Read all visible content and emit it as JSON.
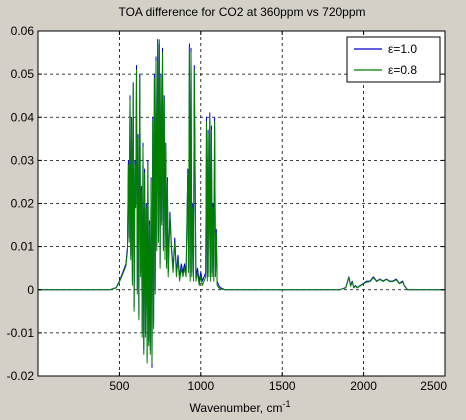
{
  "chart_data": {
    "type": "line",
    "title": "TOA difference for CO2 at 360ppm vs 720ppm",
    "xlabel": "Wavenumber, cm",
    "xlabel_superscript": "-1",
    "ylabel": "",
    "xlim": [
      0,
      2500
    ],
    "ylim": [
      -0.02,
      0.06
    ],
    "xticks": [
      500,
      1000,
      1500,
      2000,
      2500
    ],
    "xtick_labels": [
      "500",
      "1000",
      "1500",
      "2000",
      "2500"
    ],
    "yticks": [
      -0.02,
      -0.01,
      0,
      0.01,
      0.02,
      0.03,
      0.04,
      0.05,
      0.06
    ],
    "ytick_labels": [
      "-0.02",
      "-0.01",
      "0",
      "0.01",
      "0.02",
      "0.03",
      "0.04",
      "0.05",
      "0.06"
    ],
    "grid": true,
    "legend_position": "top-right",
    "series": [
      {
        "name": "ε=1.0",
        "color": "#0000cc",
        "x": [
          0,
          440,
          480,
          500,
          520,
          540,
          550,
          555,
          560,
          565,
          570,
          575,
          580,
          585,
          590,
          595,
          600,
          605,
          610,
          615,
          620,
          625,
          630,
          635,
          640,
          645,
          650,
          655,
          660,
          665,
          670,
          675,
          680,
          685,
          690,
          695,
          700,
          705,
          710,
          715,
          720,
          725,
          730,
          735,
          740,
          745,
          750,
          755,
          760,
          765,
          770,
          775,
          780,
          785,
          790,
          795,
          800,
          810,
          820,
          830,
          840,
          850,
          860,
          870,
          880,
          890,
          900,
          910,
          920,
          925,
          930,
          935,
          940,
          945,
          950,
          955,
          960,
          970,
          980,
          990,
          1000,
          1010,
          1020,
          1030,
          1035,
          1040,
          1045,
          1050,
          1055,
          1060,
          1065,
          1070,
          1075,
          1080,
          1085,
          1090,
          1095,
          1100,
          1110,
          1120,
          1150,
          1850,
          1890,
          1910,
          1920,
          1930,
          1940,
          1950,
          1960,
          1980,
          2000,
          2020,
          2040,
          2060,
          2080,
          2100,
          2120,
          2140,
          2160,
          2180,
          2200,
          2220,
          2240,
          2250,
          2260,
          2270,
          2400,
          2500
        ],
        "values": [
          0,
          0,
          0.0005,
          0.002,
          0.004,
          0.006,
          0.01,
          0.03,
          0.012,
          0.045,
          0.008,
          0.04,
          0.002,
          0.048,
          -0.004,
          0.03,
          0.02,
          0.052,
          0.0,
          0.036,
          -0.006,
          0.05,
          0.004,
          0.024,
          -0.01,
          0.034,
          -0.014,
          0.028,
          -0.01,
          0.02,
          -0.016,
          0.03,
          -0.012,
          0.016,
          -0.014,
          0.026,
          -0.018,
          0.04,
          -0.008,
          0.05,
          0.0,
          0.054,
          0.01,
          0.058,
          0.012,
          0.057,
          0.006,
          0.05,
          0.016,
          0.056,
          0.01,
          0.045,
          0.008,
          0.034,
          0.006,
          0.026,
          0.004,
          0.018,
          0.01,
          0.005,
          0.012,
          0.004,
          0.008,
          0.003,
          0.006,
          0.004,
          0.006,
          0.004,
          0.028,
          0.005,
          0.057,
          0.003,
          0.056,
          0.004,
          0.02,
          0.003,
          0.052,
          0.003,
          0.005,
          0.002,
          0.004,
          0.002,
          0.003,
          0.004,
          0.04,
          0.003,
          0.037,
          0.004,
          0.041,
          0.003,
          0.038,
          0.004,
          0.02,
          0.003,
          0.04,
          0.004,
          0.014,
          0.002,
          0.001,
          0.0005,
          0,
          0,
          0.0005,
          0.003,
          0.001,
          0.002,
          0.0005,
          0.001,
          0.0005,
          0.001,
          0.0015,
          0.002,
          0.002,
          0.003,
          0.002,
          0.0025,
          0.002,
          0.0025,
          0.002,
          0.002,
          0.0025,
          0.0015,
          0.002,
          0.001,
          0.0005,
          0,
          0,
          0
        ]
      },
      {
        "name": "ε=0.8",
        "color": "#008000",
        "x": [
          0,
          440,
          480,
          500,
          520,
          540,
          550,
          555,
          560,
          565,
          570,
          575,
          580,
          585,
          590,
          595,
          600,
          605,
          610,
          615,
          620,
          625,
          630,
          635,
          640,
          645,
          650,
          655,
          660,
          665,
          670,
          675,
          680,
          685,
          690,
          695,
          700,
          705,
          710,
          715,
          720,
          725,
          730,
          735,
          740,
          745,
          750,
          755,
          760,
          765,
          770,
          775,
          780,
          785,
          790,
          795,
          800,
          810,
          820,
          830,
          840,
          850,
          860,
          870,
          880,
          890,
          900,
          910,
          920,
          925,
          930,
          935,
          940,
          945,
          950,
          955,
          960,
          970,
          980,
          990,
          1000,
          1010,
          1020,
          1030,
          1035,
          1040,
          1045,
          1050,
          1055,
          1060,
          1065,
          1070,
          1075,
          1080,
          1085,
          1090,
          1095,
          1100,
          1110,
          1120,
          1150,
          1850,
          1890,
          1910,
          1920,
          1930,
          1940,
          1950,
          1960,
          1980,
          2000,
          2020,
          2040,
          2060,
          2080,
          2100,
          2120,
          2140,
          2160,
          2180,
          2200,
          2220,
          2240,
          2250,
          2260,
          2270,
          2400,
          2500
        ],
        "values": [
          0,
          0,
          0.0004,
          0.0018,
          0.0036,
          0.0055,
          0.009,
          0.029,
          0.011,
          0.044,
          0.007,
          0.039,
          0.001,
          0.047,
          -0.005,
          0.029,
          0.019,
          0.051,
          -0.001,
          0.035,
          -0.007,
          0.049,
          0.003,
          0.023,
          -0.011,
          0.033,
          -0.015,
          0.027,
          -0.011,
          0.019,
          -0.017,
          0.029,
          -0.013,
          0.015,
          -0.015,
          0.025,
          -0.017,
          0.039,
          -0.009,
          0.049,
          -0.001,
          0.053,
          0.009,
          0.057,
          0.011,
          0.058,
          0.005,
          0.049,
          0.015,
          0.055,
          0.009,
          0.044,
          0.007,
          0.033,
          0.005,
          0.025,
          0.003,
          0.017,
          0.009,
          0.004,
          0.011,
          0.003,
          0.007,
          0.002,
          0.005,
          0.003,
          0.005,
          0.003,
          0.027,
          0.004,
          0.056,
          0.002,
          0.055,
          0.003,
          0.019,
          0.002,
          0.051,
          0.002,
          0.004,
          0.001,
          0.003,
          0.001,
          0.002,
          0.003,
          0.039,
          0.002,
          0.036,
          0.003,
          0.04,
          0.002,
          0.037,
          0.003,
          0.019,
          0.002,
          0.039,
          0.003,
          0.013,
          0.001,
          0.0005,
          0.0002,
          0,
          0,
          0.0004,
          0.0028,
          0.0008,
          0.0018,
          0.0004,
          0.0009,
          0.0004,
          0.0009,
          0.0014,
          0.0018,
          0.0019,
          0.0028,
          0.0019,
          0.0024,
          0.0019,
          0.0024,
          0.0019,
          0.0019,
          0.0023,
          0.0014,
          0.0018,
          0.0009,
          0.0004,
          0,
          0,
          0
        ]
      }
    ]
  }
}
